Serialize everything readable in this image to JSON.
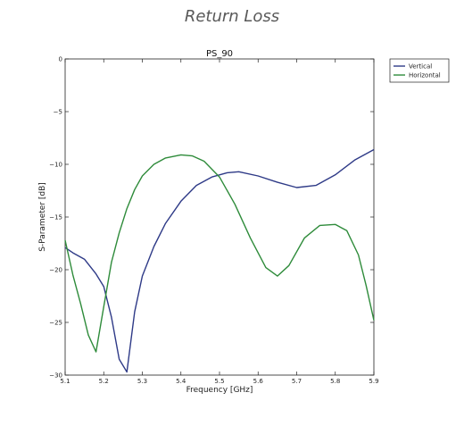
{
  "page": {
    "title": "Return Loss"
  },
  "chart_data": {
    "type": "line",
    "title": "PS_90",
    "xlabel": "Frequency [GHz]",
    "ylabel": "S-Parameter [dB]",
    "xlim": [
      5.1,
      5.9
    ],
    "ylim": [
      -30,
      0
    ],
    "xticks": [
      5.1,
      5.2,
      5.3,
      5.4,
      5.5,
      5.6,
      5.7,
      5.8,
      5.9
    ],
    "xtick_labels": [
      "5.1",
      "5.2",
      "5.3",
      "5.4",
      "5.5",
      "5.6",
      "5.7",
      "5.8",
      "5.9"
    ],
    "yticks": [
      0,
      -5,
      -10,
      -15,
      -20,
      -25,
      -30
    ],
    "ytick_labels": [
      "0",
      "−5",
      "−10",
      "−15",
      "−20",
      "−25",
      "−30"
    ],
    "grid": false,
    "legend_position": "outside-top-right",
    "series": [
      {
        "name": "Vertical",
        "color": "#2e3a87",
        "x": [
          5.1,
          5.12,
          5.15,
          5.18,
          5.2,
          5.22,
          5.24,
          5.26,
          5.28,
          5.3,
          5.33,
          5.36,
          5.4,
          5.44,
          5.48,
          5.52,
          5.55,
          5.6,
          5.65,
          5.7,
          5.75,
          5.8,
          5.85,
          5.9
        ],
        "y": [
          -17.9,
          -18.4,
          -19.0,
          -20.4,
          -21.6,
          -24.5,
          -28.5,
          -29.7,
          -24.0,
          -20.6,
          -17.8,
          -15.6,
          -13.5,
          -12.0,
          -11.2,
          -10.8,
          -10.7,
          -11.1,
          -11.7,
          -12.2,
          -12.0,
          -11.0,
          -9.6,
          -8.6
        ]
      },
      {
        "name": "Horizontal",
        "color": "#2e8b3a",
        "x": [
          5.1,
          5.12,
          5.14,
          5.16,
          5.18,
          5.2,
          5.22,
          5.24,
          5.26,
          5.28,
          5.3,
          5.33,
          5.36,
          5.4,
          5.43,
          5.46,
          5.5,
          5.54,
          5.58,
          5.62,
          5.65,
          5.68,
          5.72,
          5.76,
          5.8,
          5.83,
          5.86,
          5.88,
          5.9
        ],
        "y": [
          -17.2,
          -20.5,
          -23.2,
          -26.2,
          -27.8,
          -23.5,
          -19.3,
          -16.5,
          -14.2,
          -12.4,
          -11.1,
          -10.0,
          -9.4,
          -9.1,
          -9.2,
          -9.7,
          -11.2,
          -13.8,
          -17.0,
          -19.8,
          -20.6,
          -19.6,
          -17.0,
          -15.8,
          -15.7,
          -16.3,
          -18.6,
          -21.5,
          -24.8
        ]
      }
    ]
  }
}
